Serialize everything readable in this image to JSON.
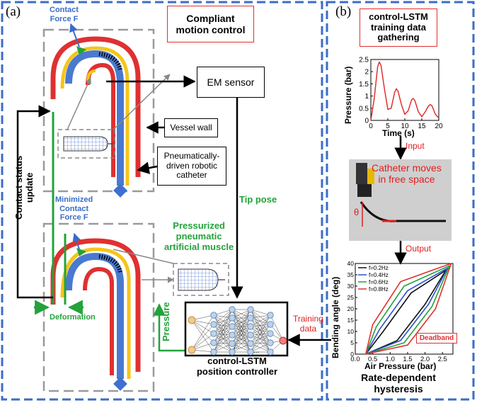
{
  "panel_a": {
    "label": "(a)",
    "title": "Compliant\nmotion control",
    "contact_force": "Contact\nForce F",
    "minimized_contact_force": "Minimized\nContact\nForce F",
    "em_sensor": "EM sensor",
    "vessel_wall": "Vessel wall",
    "catheter_label": "Pneumatically-\ndriven robotic\ncatheter",
    "contact_status_update": "Contact status\nupdate",
    "tip_pose": "Tip pose",
    "muscle_label": "Pressurized\npneumatic\nartificial muscle",
    "pressure": "Pressure",
    "deformation": "Deformation",
    "controller_title": "control-LSTM\nposition controller",
    "training_data": "Training\ndata",
    "ellipsis": "..."
  },
  "panel_b": {
    "label": "(b)",
    "title": "control-LSTM\ntraining data\ngathering",
    "input": "Input",
    "output": "Output",
    "photo_text": "Catheter moves\nin free space",
    "theta": "θ",
    "deadband": "Deadband",
    "caption": "Rate-dependent\nhysteresis"
  },
  "chart_data": [
    {
      "type": "line",
      "title": "",
      "xlabel": "Time (s)",
      "ylabel": "Pressure (bar)",
      "xlim": [
        0,
        20
      ],
      "ylim": [
        0,
        2.5
      ],
      "xticks": [
        "0",
        "5",
        "10",
        "15",
        "20"
      ],
      "yticks": [
        "0",
        "0.5",
        "1",
        "1.5",
        "2",
        "2.5"
      ],
      "series": [
        {
          "color": "#e03030",
          "x": [
            0,
            1,
            2,
            2.5,
            3,
            4,
            5,
            6,
            7,
            7.5,
            8,
            9,
            10,
            11,
            12,
            12.5,
            13,
            14,
            15,
            16,
            17,
            17.5,
            18,
            19,
            20
          ],
          "y": [
            0,
            0.9,
            2.2,
            2.4,
            2.25,
            1.3,
            0.45,
            0.5,
            1.15,
            1.3,
            1.2,
            0.65,
            0.25,
            0.4,
            0.85,
            0.9,
            0.8,
            0.35,
            0.15,
            0.35,
            0.6,
            0.65,
            0.6,
            0.25,
            0.1
          ]
        }
      ]
    },
    {
      "type": "line",
      "title": "",
      "xlabel": "Air Pressure (bar)",
      "ylabel": "Bending angle (deg)",
      "xlim": [
        0,
        2.8
      ],
      "ylim": [
        0,
        40
      ],
      "xticks": [
        "0.0",
        "0.5",
        "1.0",
        "1.5",
        "2.0",
        "2.5"
      ],
      "yticks": [
        "0",
        "5",
        "10",
        "15",
        "20",
        "25",
        "30",
        "35",
        "40"
      ],
      "legend_position": "top-left",
      "series": [
        {
          "name": "f=0.2Hz",
          "color": "#111111",
          "up": [
            [
              0.3,
              0
            ],
            [
              1.2,
              6
            ],
            [
              2.0,
              22
            ],
            [
              2.6,
              37
            ]
          ],
          "down": [
            [
              2.6,
              37
            ],
            [
              1.6,
              27
            ],
            [
              0.8,
              10
            ],
            [
              0.3,
              0
            ]
          ]
        },
        {
          "name": "f=0.4Hz",
          "color": "#2c4fd0",
          "up": [
            [
              0.3,
              0
            ],
            [
              1.3,
              6
            ],
            [
              2.1,
              22
            ],
            [
              2.65,
              38
            ]
          ],
          "down": [
            [
              2.65,
              38
            ],
            [
              1.5,
              28
            ],
            [
              0.7,
              11
            ],
            [
              0.3,
              0
            ]
          ]
        },
        {
          "name": "f=0.6Hz",
          "color": "#22a33a",
          "up": [
            [
              0.3,
              0
            ],
            [
              1.4,
              5
            ],
            [
              2.2,
              21
            ],
            [
              2.7,
              39
            ]
          ],
          "down": [
            [
              2.7,
              39
            ],
            [
              1.4,
              30
            ],
            [
              0.6,
              12
            ],
            [
              0.3,
              0
            ]
          ]
        },
        {
          "name": "f=0.8Hz",
          "color": "#e03030",
          "up": [
            [
              0.3,
              0
            ],
            [
              1.5,
              4
            ],
            [
              2.3,
              20
            ],
            [
              2.75,
              40
            ]
          ],
          "down": [
            [
              2.75,
              40
            ],
            [
              1.3,
              32
            ],
            [
              0.5,
              13
            ],
            [
              0.3,
              0
            ]
          ]
        }
      ]
    }
  ],
  "colors": {
    "dashed_frame": "#3b6cc8",
    "red": "#e03030",
    "yellow": "#f5c518",
    "blue": "#4a7ad0",
    "green": "#22a33a",
    "gray_dash": "#9a9a9a",
    "photo_bg": "#cfcfcf"
  }
}
